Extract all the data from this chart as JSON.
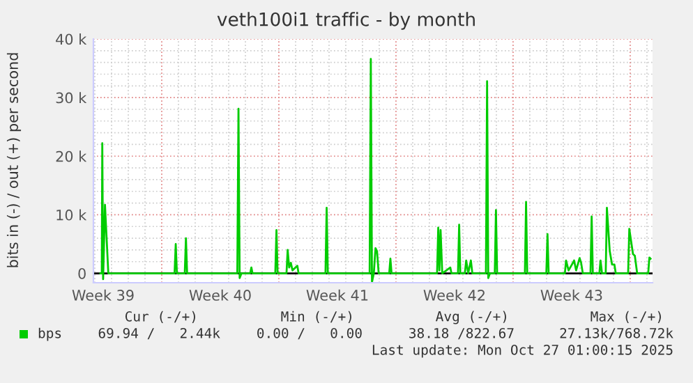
{
  "chart_data": {
    "type": "line",
    "title": "veth100i1 traffic - by month",
    "ylabel": "bits in (-) / out (+) per second",
    "x": [
      "2025-09-25T08:05",
      "2025-09-25T10:00",
      "2025-09-25T10:43",
      "2025-09-25T11:55",
      "2025-09-25T14:34",
      "2025-09-25T19:22",
      "2025-09-29T18:24",
      "2025-09-29T20:05",
      "2025-09-29T21:46",
      "2025-09-30T09:02",
      "2025-09-30T10:43",
      "2025-09-30T12:24",
      "2025-10-03T12:24",
      "2025-10-03T14:05",
      "2025-10-03T15:46",
      "2025-10-03T18:24",
      "2025-10-04T06:53",
      "2025-10-04T08:34",
      "2025-10-04T10:14",
      "2025-10-05T18:53",
      "2025-10-05T20:34",
      "2025-10-05T22:14",
      "2025-10-06T10:58",
      "2025-10-06T12:38",
      "2025-10-06T14:48",
      "2025-10-06T17:12",
      "2025-10-06T19:36",
      "2025-10-07T02:34",
      "2025-10-07T04:14",
      "2025-10-08T18:53",
      "2025-10-08T20:34",
      "2025-10-08T22:14",
      "2025-10-11T10:14",
      "2025-10-11T11:55",
      "2025-10-11T13:36",
      "2025-10-11T16:14",
      "2025-10-11T18:38",
      "2025-10-11T20:48",
      "2025-10-11T23:12",
      "2025-10-12T14:19",
      "2025-10-12T16:00",
      "2025-10-12T17:41",
      "2025-10-15T10:58",
      "2025-10-15T12:38",
      "2025-10-15T14:19",
      "2025-10-15T16:00",
      "2025-10-15T18:24",
      "2025-10-16T05:55",
      "2025-10-16T07:36",
      "2025-10-16T16:58",
      "2025-10-16T18:38",
      "2025-10-16T20:19",
      "2025-10-17T02:48",
      "2025-10-17T04:43",
      "2025-10-17T07:36",
      "2025-10-17T11:26",
      "2025-10-17T13:36",
      "2025-10-18T09:02",
      "2025-10-18T10:43",
      "2025-10-18T12:24",
      "2025-10-18T14:48",
      "2025-10-18T21:46",
      "2025-10-18T23:26",
      "2025-10-19T01:07",
      "2025-10-20T16:58",
      "2025-10-20T18:38",
      "2025-10-20T20:19",
      "2025-10-21T23:41",
      "2025-10-22T01:22",
      "2025-10-22T03:02",
      "2025-10-23T02:19",
      "2025-10-23T04:00",
      "2025-10-23T07:36",
      "2025-10-23T12:24",
      "2025-10-23T15:31",
      "2025-10-23T18:24",
      "2025-10-23T23:26",
      "2025-10-24T01:36",
      "2025-10-24T04:00",
      "2025-10-24T15:02",
      "2025-10-24T16:43",
      "2025-10-24T18:24",
      "2025-10-25T03:46",
      "2025-10-25T05:26",
      "2025-10-25T07:36",
      "2025-10-25T12:53",
      "2025-10-25T14:34",
      "2025-10-25T18:38",
      "2025-10-25T22:00",
      "2025-10-26T01:22",
      "2025-10-26T03:17",
      "2025-10-26T21:02",
      "2025-10-26T22:43",
      "2025-10-27T04:00",
      "2025-10-27T06:38",
      "2025-10-27T10:00",
      "2025-10-28T01:50",
      "2025-10-28T03:31",
      "2025-10-28T05:12"
    ],
    "series": [
      {
        "name": "bps",
        "color": "#00cc00",
        "values": [
          0,
          0,
          22200,
          -1000,
          11700,
          0,
          0,
          5000,
          0,
          0,
          6000,
          0,
          0,
          28100,
          -800,
          0,
          0,
          1000,
          0,
          0,
          7400,
          0,
          0,
          4000,
          1000,
          1800,
          500,
          1300,
          0,
          0,
          11200,
          0,
          0,
          36600,
          -1500,
          0,
          4300,
          3800,
          0,
          0,
          2500,
          0,
          0,
          7800,
          500,
          7400,
          0,
          1000,
          0,
          0,
          8300,
          0,
          0,
          2200,
          0,
          2200,
          0,
          0,
          32800,
          -800,
          0,
          0,
          10800,
          0,
          0,
          12200,
          0,
          0,
          6700,
          0,
          0,
          2200,
          500,
          1500,
          2200,
          500,
          2600,
          1800,
          0,
          0,
          9700,
          0,
          0,
          2200,
          0,
          0,
          11200,
          3800,
          1500,
          1500,
          0,
          0,
          7600,
          3300,
          3000,
          0,
          0,
          2700,
          2500
        ]
      }
    ],
    "xlim": [
      "2025-09-24T22:00",
      "2025-10-28T08:05"
    ],
    "xticks": [
      {
        "value": "2025-09-25T12:00",
        "label": "Week 39"
      },
      {
        "value": "2025-10-02T12:00",
        "label": "Week 40"
      },
      {
        "value": "2025-10-09T12:00",
        "label": "Week 41"
      },
      {
        "value": "2025-10-16T12:00",
        "label": "Week 42"
      },
      {
        "value": "2025-10-23T12:00",
        "label": "Week 43"
      }
    ],
    "ylim": [
      -1600,
      40000
    ],
    "yticks": [
      {
        "value": 0,
        "label": "0"
      },
      {
        "value": 10000,
        "label": "10 k"
      },
      {
        "value": 20000,
        "label": "20 k"
      },
      {
        "value": 30000,
        "label": "30 k"
      },
      {
        "value": 40000,
        "label": "40 k"
      }
    ],
    "ref_lines": [
      {
        "axis": "y",
        "value": 0,
        "color": "#000000"
      }
    ],
    "grid": true,
    "legend": "bottom",
    "line_style": "solid",
    "marker": "none",
    "annotations": [
      "Cur (-/+)",
      "Min (-/+)",
      "Avg (-/+)",
      "Max (-/+)",
      "69.94 /   2.44k",
      "0.00 /   0.00",
      "38.18 /822.67",
      "27.13k/768.72k",
      "Last update: Mon Oct 27 01:00:15 2025"
    ]
  }
}
